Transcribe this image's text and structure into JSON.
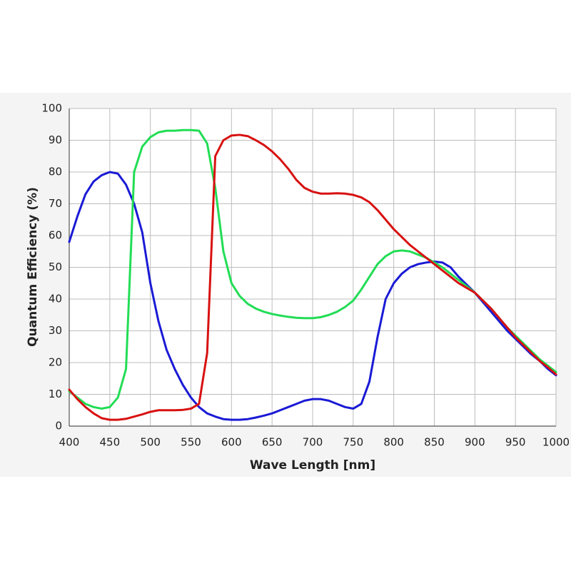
{
  "chart_data": {
    "type": "line",
    "x_label": "Wave Length [nm]",
    "y_label": "Quantum Efficiency (%)",
    "x": [
      400,
      410,
      420,
      430,
      440,
      450,
      460,
      470,
      480,
      490,
      500,
      510,
      520,
      530,
      540,
      550,
      560,
      570,
      580,
      590,
      600,
      610,
      620,
      630,
      640,
      650,
      660,
      670,
      680,
      690,
      700,
      710,
      720,
      730,
      740,
      750,
      760,
      770,
      780,
      790,
      800,
      810,
      820,
      830,
      840,
      850,
      860,
      870,
      880,
      890,
      900,
      910,
      920,
      930,
      940,
      950,
      960,
      970,
      980,
      990,
      1000
    ],
    "series": [
      {
        "color": "#1a1ad6",
        "values": [
          58,
          66,
          73,
          77,
          79,
          80,
          79.5,
          76,
          70,
          61,
          45,
          33,
          24,
          18,
          13,
          9,
          6,
          4,
          3,
          2.2,
          2,
          2,
          2.2,
          2.7,
          3.3,
          4,
          5,
          6,
          7,
          8,
          8.5,
          8.5,
          8,
          7,
          6,
          5.5,
          7,
          14,
          28,
          40,
          45,
          48,
          50,
          51,
          51.5,
          51.8,
          51.5,
          50,
          47,
          44.5,
          42,
          39,
          36,
          33,
          30,
          27.5,
          25,
          22.5,
          20.5,
          18,
          16
        ]
      },
      {
        "color": "#22dd55",
        "values": [
          11,
          9,
          7,
          6,
          5.5,
          6,
          9,
          18,
          80,
          88,
          91,
          92.5,
          93,
          93,
          93.2,
          93.2,
          93,
          89,
          75,
          55,
          45,
          41,
          38.5,
          37,
          36,
          35.3,
          34.8,
          34.4,
          34.1,
          34,
          34,
          34.3,
          35,
          36,
          37.5,
          39.5,
          43,
          47,
          51,
          53.5,
          55,
          55.3,
          55,
          54,
          53,
          51.5,
          50,
          48,
          46,
          44,
          42,
          39.5,
          37,
          34,
          31,
          28.5,
          26,
          23.5,
          21,
          19,
          17
        ]
      },
      {
        "color": "#d81111",
        "values": [
          11.5,
          8.5,
          6,
          4,
          2.5,
          2,
          2,
          2.3,
          3,
          3.7,
          4.5,
          5,
          5,
          5,
          5.1,
          5.5,
          7,
          23,
          85,
          90,
          91.5,
          91.7,
          91.3,
          90,
          88.5,
          86.5,
          84,
          81,
          77.5,
          75,
          73.8,
          73.2,
          73.2,
          73.3,
          73.2,
          72.8,
          72,
          70.5,
          68,
          65,
          62,
          59.5,
          57,
          55,
          53,
          51,
          49,
          47,
          45,
          43.5,
          42,
          39.5,
          37,
          34,
          31,
          28,
          25.5,
          23,
          20.5,
          18.5,
          16.3
        ]
      }
    ],
    "xlim": [
      400,
      1000
    ],
    "ylim": [
      0,
      100
    ],
    "xticks": [
      400,
      450,
      500,
      550,
      600,
      650,
      700,
      750,
      800,
      850,
      900,
      950,
      1000
    ],
    "yticks": [
      0,
      10,
      20,
      30,
      40,
      50,
      60,
      70,
      80,
      90,
      100
    ],
    "grid": true
  }
}
